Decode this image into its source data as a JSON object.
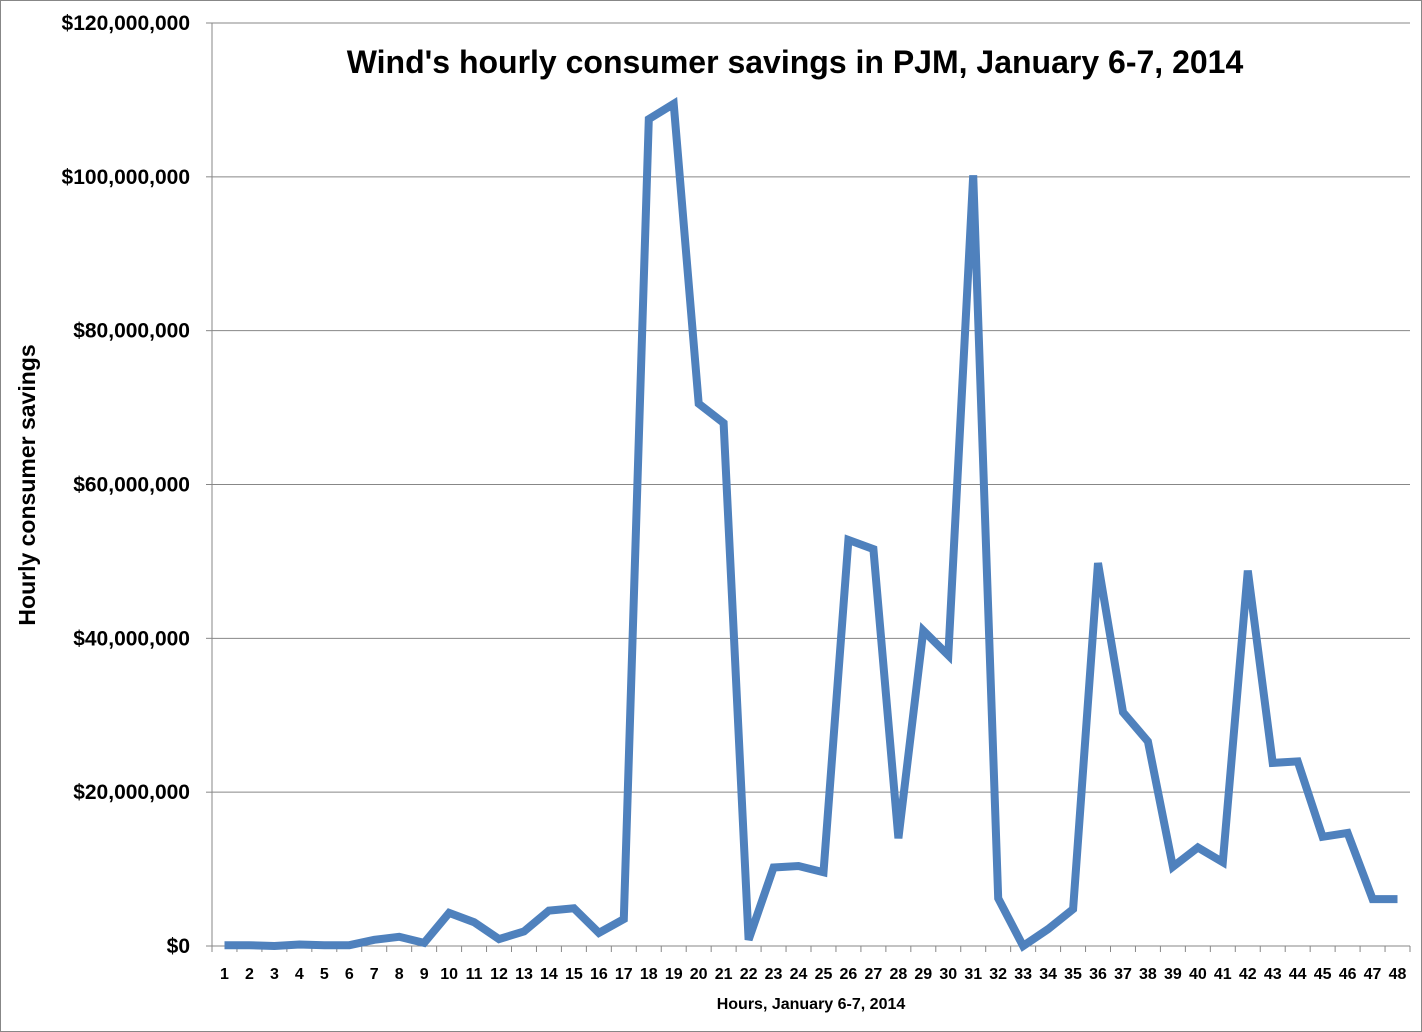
{
  "chart_data": {
    "type": "line",
    "title": "Wind's hourly consumer savings in PJM, January 6-7, 2014",
    "xlabel": "Hours, January 6-7, 2014",
    "ylabel": "Hourly consumer savings",
    "ylim": [
      0,
      120000000
    ],
    "yticks": [
      0,
      20000000,
      40000000,
      60000000,
      80000000,
      100000000,
      120000000
    ],
    "ytick_labels": [
      "$0",
      "$20,000,000",
      "$40,000,000",
      "$60,000,000",
      "$80,000,000",
      "$100,000,000",
      "$120,000,000"
    ],
    "grid": "horizontal",
    "legend": "none",
    "line_color": "#4F81BD",
    "x": [
      "1",
      "2",
      "3",
      "4",
      "5",
      "6",
      "7",
      "8",
      "9",
      "10",
      "11",
      "12",
      "13",
      "14",
      "15",
      "16",
      "17",
      "18",
      "19",
      "20",
      "21",
      "22",
      "23",
      "24",
      "25",
      "26",
      "27",
      "28",
      "29",
      "30",
      "31",
      "32",
      "33",
      "34",
      "35",
      "36",
      "37",
      "38",
      "39",
      "40",
      "41",
      "42",
      "43",
      "44",
      "45",
      "46",
      "47",
      "48"
    ],
    "values": [
      100000,
      100000,
      0,
      200000,
      100000,
      100000,
      800000,
      1200000,
      400000,
      4300000,
      3100000,
      900000,
      1900000,
      4600000,
      4900000,
      1700000,
      3500000,
      107500000,
      109500000,
      70500000,
      68000000,
      800000,
      10200000,
      10400000,
      9600000,
      52800000,
      51600000,
      14000000,
      41000000,
      37800000,
      100200000,
      6200000,
      0,
      2200000,
      4800000,
      49800000,
      30400000,
      26600000,
      10300000,
      12800000,
      10900000,
      48800000,
      23800000,
      24000000,
      14200000,
      14700000,
      6100000,
      6100000
    ]
  }
}
